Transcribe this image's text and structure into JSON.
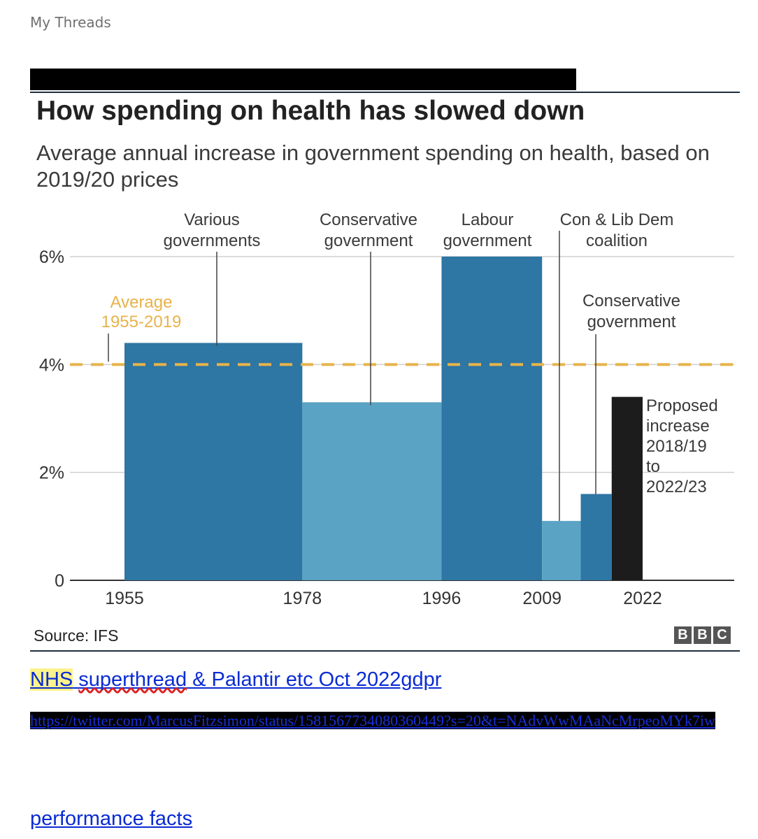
{
  "document": {
    "title": "My Threads"
  },
  "chart_data": {
    "type": "bar",
    "title": "How spending on health has slowed down",
    "subtitle": "Average annual increase in government spending on health, based on 2019/20 prices",
    "source": "Source: IFS",
    "logo": [
      "B",
      "B",
      "C"
    ],
    "y_ticks": [
      "0",
      "2%",
      "4%",
      "6%"
    ],
    "ylim": [
      0,
      6
    ],
    "x_ticks": [
      "1955",
      "1978",
      "1996",
      "2009",
      "2022"
    ],
    "average": {
      "value": 4,
      "label_line1": "Average",
      "label_line2": "1955-2019",
      "color": "#e8b34a"
    },
    "bars": [
      {
        "start": 1955,
        "end": 1978,
        "value": 4.4,
        "color": "#2e76a3",
        "label": [
          "Various",
          "governments"
        ]
      },
      {
        "start": 1978,
        "end": 1996,
        "value": 3.3,
        "color": "#5aa3c4",
        "label": [
          "Conservative",
          "government"
        ]
      },
      {
        "start": 1996,
        "end": 2009,
        "value": 6.0,
        "color": "#2e76a3",
        "label": [
          "Labour",
          "government"
        ]
      },
      {
        "start": 2009,
        "end": 2014,
        "value": 1.1,
        "color": "#5aa3c4",
        "label": [
          "Con & Lib Dem",
          "coalition"
        ]
      },
      {
        "start": 2014,
        "end": 2018,
        "value": 1.6,
        "color": "#2e76a3",
        "label": [
          "Conservative",
          "government"
        ]
      },
      {
        "start": 2018,
        "end": 2022,
        "value": 3.4,
        "color": "#1c1c1c",
        "label": [
          "Proposed",
          "increase",
          "2018/19",
          "to",
          "2022/23"
        ]
      }
    ]
  },
  "links": {
    "thread_title_highlight": "NHS",
    "thread_title_spell": "superthread",
    "thread_title_rest": " & Palantir etc Oct 2022gdpr",
    "twitter_url": "https://twitter.com/MarcusFitzsimon/status/1581567734080360449?s=20&t=NAdvWwMAaNcMrpeoMYk7iw",
    "performance_facts": "performance facts"
  }
}
